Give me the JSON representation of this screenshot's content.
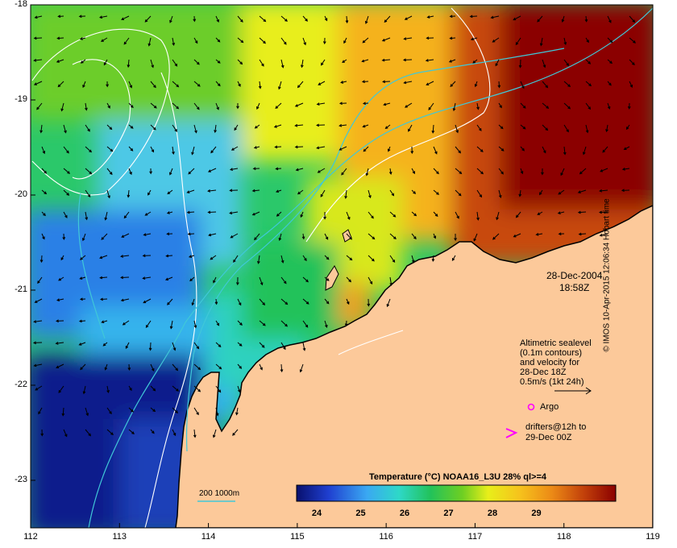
{
  "map": {
    "lon_ticks": [
      "112",
      "113",
      "114",
      "115",
      "116",
      "117",
      "118",
      "119"
    ],
    "lat_ticks": [
      "-18",
      "-19",
      "-20",
      "-21",
      "-22",
      "-23"
    ],
    "land_color": "#fcc99a",
    "ocean_palette": [
      "#0b1f8c",
      "#1c4fd6",
      "#3ba4f0",
      "#2fd4c4",
      "#2bc86a",
      "#42b82a",
      "#c8e61a",
      "#f4e21c",
      "#f5a81e",
      "#e07010",
      "#b02a08",
      "#8b0000"
    ]
  },
  "annotations": {
    "date": "28-Dec-2004",
    "time": "18:58Z",
    "legend_line1": "Altimetric sealevel",
    "legend_line2": "(0.1m contours)",
    "legend_line3": "and velocity for",
    "legend_line4": "28-Dec 18Z",
    "legend_line5": "0.5m/s (1kt 24h)",
    "argo_label": "Argo",
    "drifters_line1": "drifters@12h to",
    "drifters_line2": "29-Dec 00Z",
    "isobath_label": "200  1000m",
    "credit": "© IMOS 10-Apr-2015 12:06:34 Hobart time"
  },
  "colorbar": {
    "title": "Temperature (°C) NOAA16_L3U 28% ql>=4",
    "ticks": [
      "24",
      "25",
      "26",
      "27",
      "28",
      "29"
    ]
  }
}
